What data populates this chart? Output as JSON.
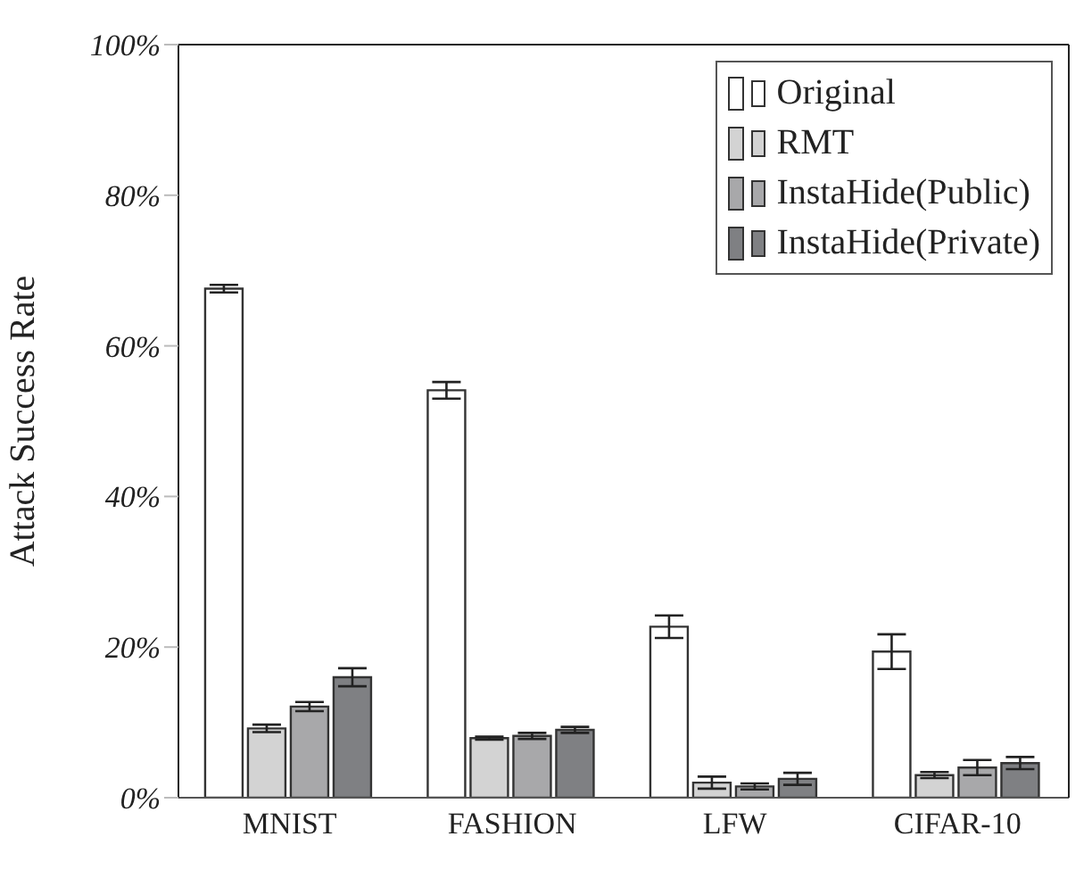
{
  "chart_data": {
    "type": "bar",
    "ylabel": "Attack Success Rate",
    "categories": [
      "MNIST",
      "FASHION",
      "LFW",
      "CIFAR-10"
    ],
    "series": [
      {
        "name": "Original",
        "color": "#ffffff",
        "values": [
          67.6,
          54.1,
          22.7,
          19.4
        ],
        "errors": [
          0.5,
          1.1,
          1.5,
          2.3
        ]
      },
      {
        "name": "RMT",
        "color": "#d3d3d3",
        "values": [
          9.2,
          7.9,
          2.0,
          3.0
        ],
        "errors": [
          0.5,
          0.2,
          0.8,
          0.4
        ]
      },
      {
        "name": "InstaHide(Public)",
        "color": "#a8a8aa",
        "values": [
          12.1,
          8.2,
          1.5,
          4.0
        ],
        "errors": [
          0.6,
          0.4,
          0.4,
          1.0
        ]
      },
      {
        "name": "InstaHide(Private)",
        "color": "#7f8083",
        "values": [
          16.0,
          9.0,
          2.5,
          4.6
        ],
        "errors": [
          1.2,
          0.4,
          0.8,
          0.8
        ]
      }
    ],
    "ylim": [
      0,
      100
    ],
    "yticks": [
      {
        "value": 0,
        "label": "0%"
      },
      {
        "value": 20,
        "label": "20%"
      },
      {
        "value": 40,
        "label": "40%"
      },
      {
        "value": 60,
        "label": "60%"
      },
      {
        "value": 80,
        "label": "80%"
      },
      {
        "value": 100,
        "label": "100%"
      }
    ],
    "grid": false,
    "legend": "top right"
  }
}
